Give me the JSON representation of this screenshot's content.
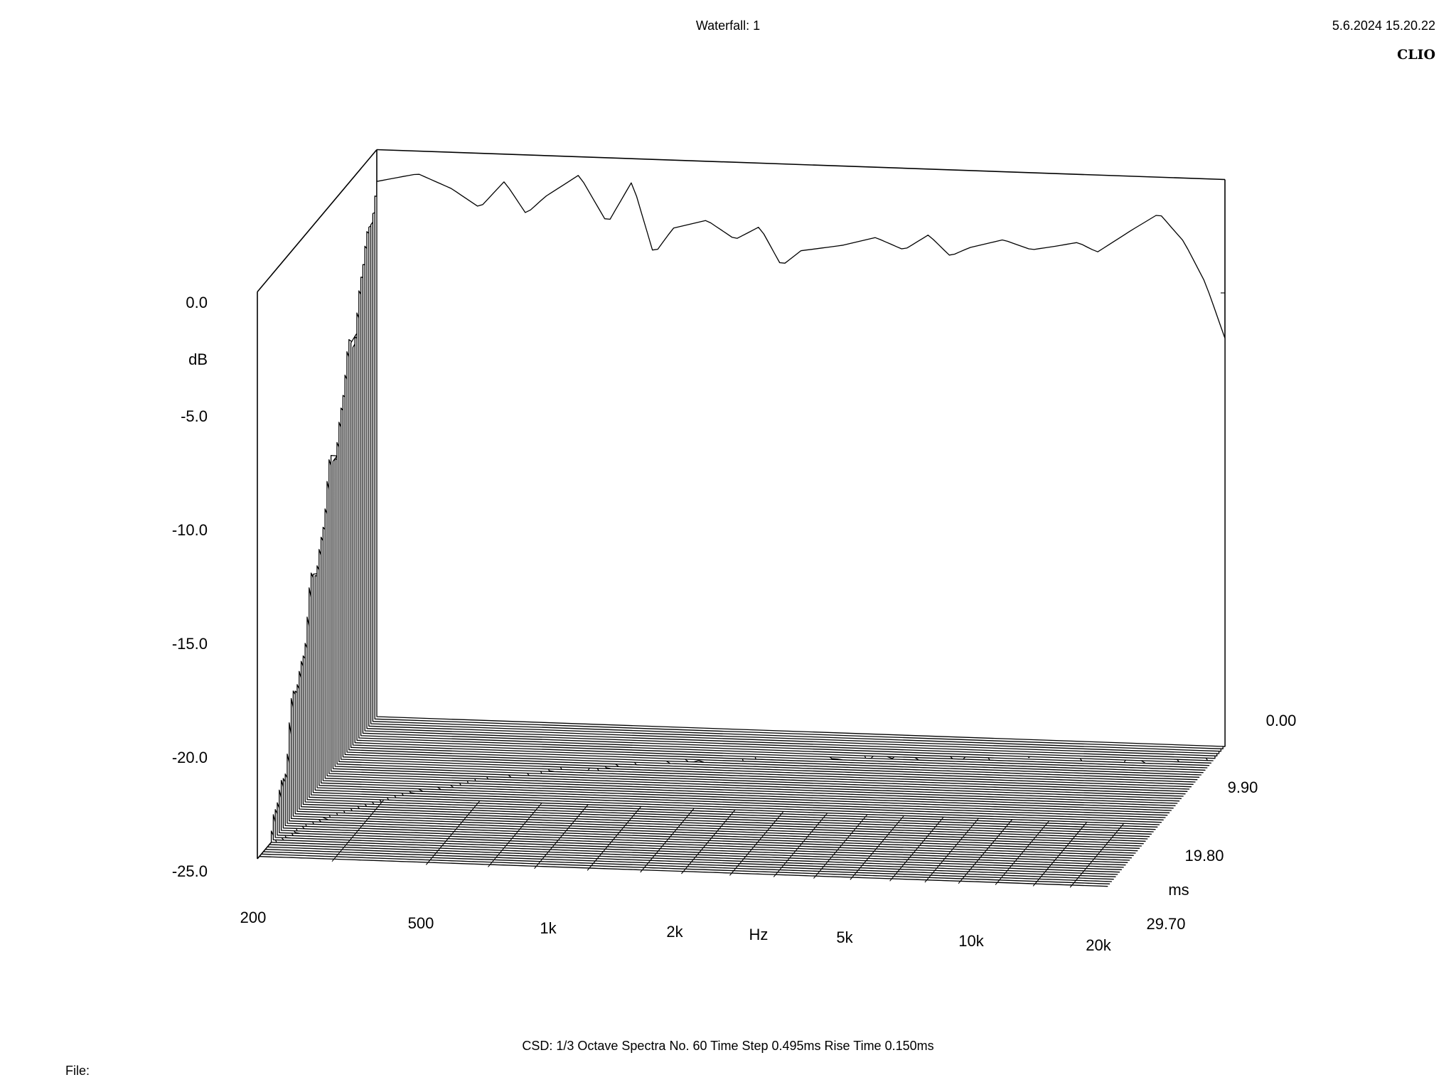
{
  "header": {
    "title": "Waterfall: 1",
    "datetime": "5.6.2024 15.20.22",
    "brand": "CLIO"
  },
  "footer": {
    "settings": "CSD:   1/3 Octave   Spectra No. 60   Time Step 0.495ms   Rise Time 0.150ms",
    "file_label": "File:"
  },
  "chart_data": {
    "type": "waterfall",
    "title": "Waterfall: 1",
    "z_axis": {
      "label": "dB",
      "ticks": [
        "0.0",
        "-5.0",
        "-10.0",
        "-15.0",
        "-20.0",
        "-25.0"
      ],
      "range": [
        -25,
        0
      ]
    },
    "x_axis": {
      "label": "Hz",
      "scale": "log",
      "ticks": [
        "200",
        "500",
        "1k",
        "2k",
        "5k",
        "10k",
        "20k"
      ],
      "range": [
        200,
        20000
      ]
    },
    "y_axis": {
      "label": "ms",
      "ticks": [
        "0.00",
        "9.90",
        "19.80",
        "29.70"
      ],
      "range": [
        0,
        29.7
      ]
    },
    "spectra_count": 60,
    "time_step_ms": 0.495,
    "first_spectrum": {
      "freq_hz": [
        200,
        250,
        300,
        350,
        400,
        450,
        500,
        600,
        700,
        800,
        900,
        1000,
        1200,
        1400,
        1600,
        1800,
        2000,
        2500,
        3000,
        3500,
        4000,
        4500,
        5000,
        6000,
        7000,
        8000,
        9000,
        10000,
        12000,
        14000,
        16000,
        18000,
        20000
      ],
      "db": [
        -1.4,
        -1.0,
        -1.6,
        -2.4,
        -1.2,
        -2.6,
        -1.8,
        -0.8,
        -2.9,
        -1.0,
        -4.2,
        -3.0,
        -2.6,
        -3.4,
        -2.8,
        -4.5,
        -3.8,
        -3.5,
        -3.1,
        -3.6,
        -2.9,
        -3.8,
        -3.4,
        -3.0,
        -3.4,
        -3.2,
        -3.0,
        -3.4,
        -2.4,
        -1.6,
        -2.8,
        -4.6,
        -7.0
      ]
    }
  }
}
